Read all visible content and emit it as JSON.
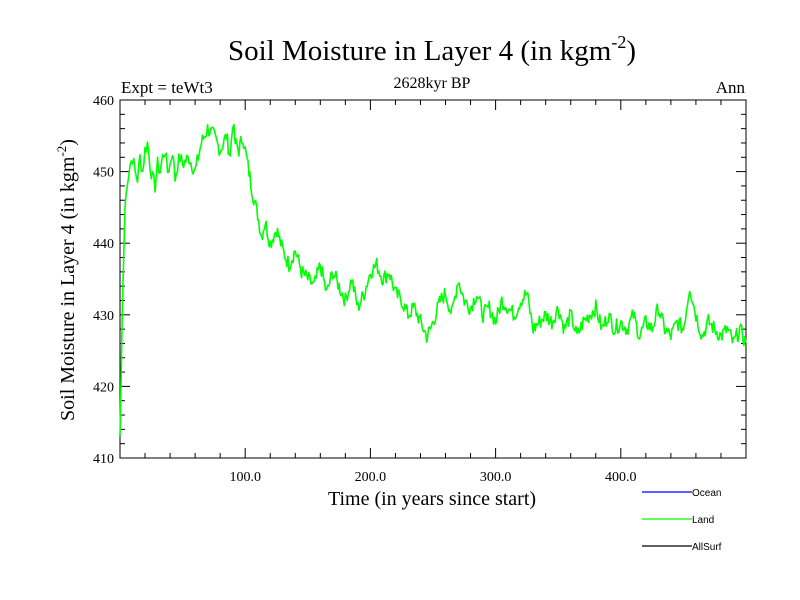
{
  "chart_data": {
    "type": "line",
    "title": "Soil Moisture in Layer 4 (in kgm",
    "title_sup": "-2",
    "title_close": ")",
    "subtitle": "2628kyr BP",
    "left_label": "Expt = teWt3",
    "right_label": "Ann",
    "xlabel": "Time (in years since start)",
    "ylabel": "Soil Moisture in Layer 4 (in kgm",
    "ylabel_sup": "-2",
    "ylabel_close": ")",
    "xlim": [
      0,
      500
    ],
    "ylim": [
      410,
      460
    ],
    "x_ticks": [
      100,
      200,
      300,
      400
    ],
    "x_tick_labels": [
      "100.0",
      "200.0",
      "300.0",
      "400.0"
    ],
    "y_ticks": [
      410,
      420,
      430,
      440,
      450,
      460
    ],
    "y_tick_labels": [
      "410",
      "420",
      "430",
      "440",
      "450",
      "460"
    ],
    "series": [
      {
        "name": "Ocean",
        "color": "#0000ff",
        "values": []
      },
      {
        "name": "Land",
        "color": "#00ff00",
        "x": [
          0,
          2,
          4,
          6,
          8,
          10,
          12,
          14,
          16,
          18,
          20,
          22,
          24,
          26,
          28,
          30,
          32,
          34,
          36,
          38,
          40,
          42,
          44,
          46,
          48,
          50,
          55,
          60,
          65,
          70,
          75,
          80,
          85,
          88,
          90,
          92,
          95,
          98,
          100,
          103,
          106,
          110,
          113,
          116,
          120,
          125,
          130,
          135,
          140,
          145,
          150,
          155,
          160,
          165,
          170,
          175,
          180,
          185,
          190,
          195,
          200,
          205,
          210,
          215,
          220,
          225,
          230,
          235,
          240,
          245,
          248,
          252,
          256,
          260,
          265,
          270,
          275,
          280,
          285,
          290,
          295,
          300,
          305,
          310,
          315,
          320,
          325,
          330,
          335,
          340,
          345,
          350,
          355,
          360,
          365,
          370,
          375,
          380,
          385,
          390,
          395,
          400,
          405,
          410,
          415,
          420,
          425,
          430,
          435,
          440,
          445,
          450,
          455,
          460,
          465,
          470,
          475,
          480,
          485,
          490,
          495,
          500
        ],
        "values": [
          413,
          432,
          445,
          449,
          451,
          452,
          450,
          449,
          452,
          450,
          453,
          454,
          451,
          449,
          448,
          451,
          450,
          452,
          453,
          450,
          451,
          453,
          449,
          451,
          452,
          451,
          452,
          450,
          454,
          456,
          455,
          453,
          455,
          452,
          457,
          454,
          453,
          455,
          453,
          450,
          447,
          444,
          441,
          443,
          440,
          442,
          439,
          437,
          439,
          436,
          435,
          434,
          437,
          433,
          436,
          434,
          432,
          435,
          431,
          433,
          436,
          437,
          435,
          436,
          433,
          432,
          430,
          431,
          429,
          427,
          428,
          430,
          432,
          433,
          430,
          435,
          432,
          431,
          433,
          430,
          431,
          429,
          432,
          431,
          430,
          432,
          433,
          428,
          429,
          430,
          429,
          431,
          428,
          430,
          427,
          429,
          430,
          431,
          428,
          430,
          428,
          429,
          428,
          430,
          427,
          429,
          428,
          431,
          428,
          427,
          429,
          428,
          434,
          430,
          427,
          429,
          428,
          427,
          428,
          426,
          428,
          426
        ]
      },
      {
        "name": "AllSurf",
        "color": "#000000",
        "values": []
      }
    ],
    "legend_position": "bottom-right",
    "grid": false
  }
}
